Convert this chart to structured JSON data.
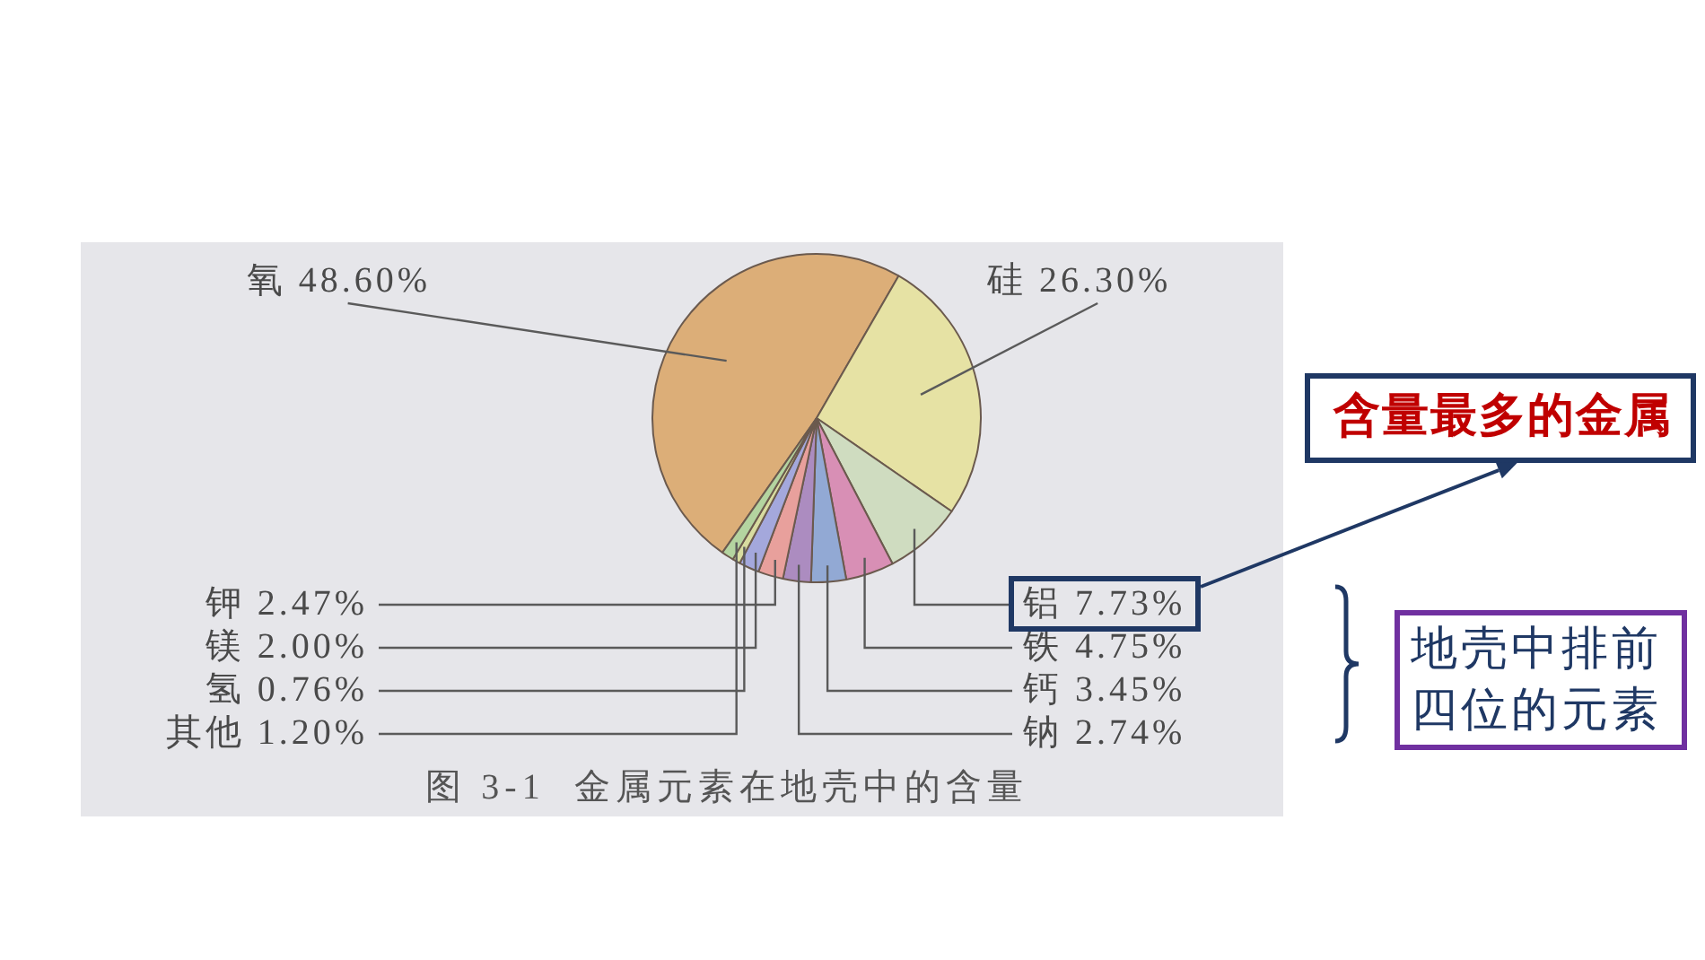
{
  "chart_data": {
    "type": "pie",
    "categories": [
      "氧",
      "硅",
      "铝",
      "铁",
      "钙",
      "钠",
      "钾",
      "镁",
      "氢",
      "其他"
    ],
    "values": [
      48.6,
      26.3,
      7.73,
      4.75,
      3.45,
      2.74,
      2.47,
      2.0,
      0.76,
      1.2
    ],
    "colors": [
      "#dcae78",
      "#e6e2a4",
      "#cfdcc0",
      "#d88fb5",
      "#92a9d4",
      "#ac8cc0",
      "#e8a09c",
      "#a4a8dc",
      "#d8dca0",
      "#b4d4a0"
    ],
    "value_labels": [
      "48.60%",
      "26.30%",
      "7.73%",
      "4.75%",
      "3.45%",
      "2.74%",
      "2.47%",
      "2.00%",
      "0.76%",
      "1.20%"
    ],
    "annotations": [
      "图 3-1  金属元素在地壳中的含量",
      "含量最多的金属",
      "地壳中排前四位的元素"
    ]
  }
}
